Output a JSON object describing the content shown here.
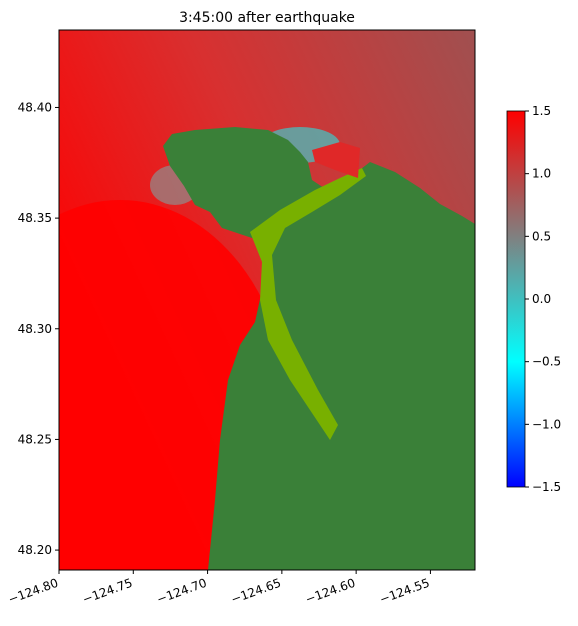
{
  "chart_data": {
    "type": "image",
    "title": "3:45:00 after earthquake",
    "xlim": [
      -124.8,
      -124.52
    ],
    "ylim": [
      48.191,
      48.435
    ],
    "xticks": [
      {
        "value": -124.8,
        "label": "−124.80"
      },
      {
        "value": -124.75,
        "label": "−124.75"
      },
      {
        "value": -124.7,
        "label": "−124.70"
      },
      {
        "value": -124.65,
        "label": "−124.65"
      },
      {
        "value": -124.6,
        "label": "−124.60"
      },
      {
        "value": -124.55,
        "label": "−124.55"
      }
    ],
    "yticks": [
      {
        "value": 48.2,
        "label": "48.20"
      },
      {
        "value": 48.25,
        "label": "48.25"
      },
      {
        "value": 48.3,
        "label": "48.30"
      },
      {
        "value": 48.35,
        "label": "48.35"
      },
      {
        "value": 48.4,
        "label": "48.40"
      }
    ],
    "colorbar": {
      "lim": [
        -1.5,
        1.5
      ],
      "ticks": [
        {
          "value": -1.5,
          "label": "−1.5"
        },
        {
          "value": -1.0,
          "label": "−1.0"
        },
        {
          "value": -0.5,
          "label": "−0.5"
        },
        {
          "value": 0.0,
          "label": "0.0"
        },
        0.5,
        {
          "value": 1.0,
          "label": "1.0"
        },
        1.5
      ],
      "colors": [
        "#0000ff",
        "#00ffff",
        "#808080",
        "#ff0000"
      ]
    }
  }
}
